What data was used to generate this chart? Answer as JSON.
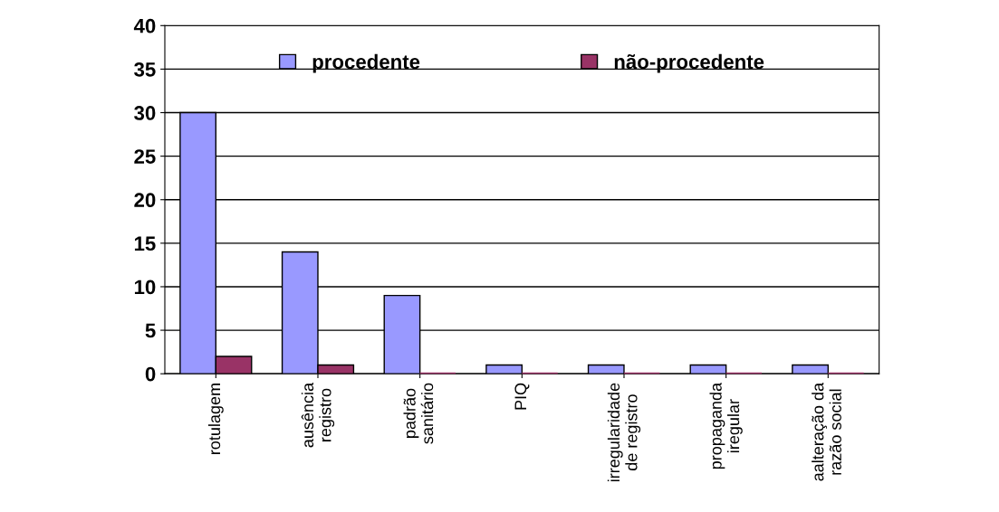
{
  "chart_data": {
    "type": "bar",
    "categories": [
      "rotulagem",
      "ausência\nregistro",
      "padrão\nsanitário",
      "PIQ",
      "irregularidade\nde registro",
      "propaganda\niregular",
      "aalteração da\nrazão social"
    ],
    "series": [
      {
        "name": "procedente",
        "color": "#9999ff",
        "values": [
          30,
          14,
          9,
          1,
          1,
          1,
          1
        ]
      },
      {
        "name": "não-procedente",
        "color": "#993366",
        "values": [
          2,
          1,
          0,
          0,
          0,
          0,
          0
        ]
      }
    ],
    "ylim": [
      0,
      40
    ],
    "yticks": [
      0,
      5,
      10,
      15,
      20,
      25,
      30,
      35,
      40
    ],
    "grid": "y",
    "legend": "top"
  }
}
